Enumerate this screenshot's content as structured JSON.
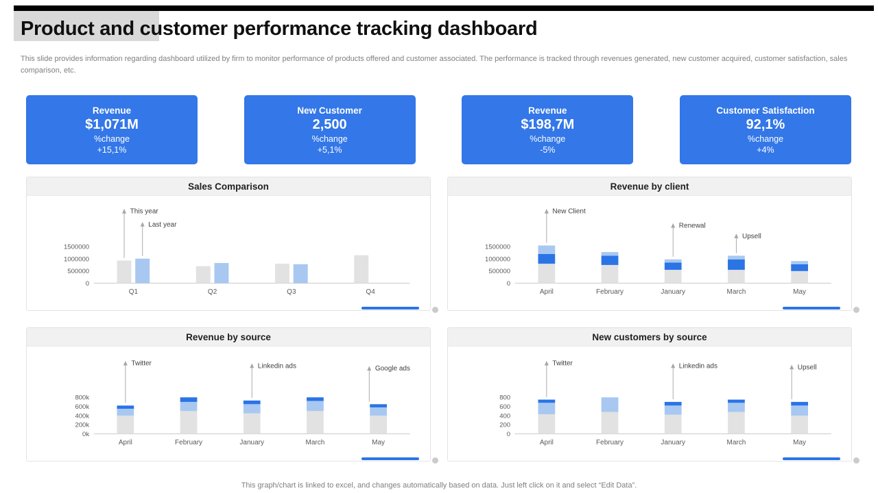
{
  "palette": {
    "accent_black": "#000000",
    "accent_gray": "#d9d9d9",
    "card_blue": "#3377e8",
    "bar_gray": "#e2e2e2",
    "bar_blue": "#2b74e6",
    "bar_light_blue": "#a8c8f1",
    "axis_gray": "#c8c8c8",
    "text_gray": "#595959"
  },
  "header": {
    "title": "Product and customer performance tracking dashboard",
    "subtitle": "This slide provides information regarding dashboard utilized by firm to monitor performance of products offered and customer associated. The performance is tracked through revenues generated, new customer acquired, customer satisfaction, sales comparison, etc."
  },
  "kpi_cards": [
    {
      "label": "Revenue",
      "value": "$1,071M",
      "change_label": "%change",
      "change_value": "+15,1%"
    },
    {
      "label": "New Customer",
      "value": "2,500",
      "change_label": "%change",
      "change_value": "+5,1%"
    },
    {
      "label": "Revenue",
      "value": "$198,7M",
      "change_label": "%change",
      "change_value": "-5%"
    },
    {
      "label": "Customer Satisfaction",
      "value": "92,1%",
      "change_label": "%change",
      "change_value": "+4%"
    }
  ],
  "footer": {
    "note": "This graph/chart is linked to excel,  and changes automatically based on data. Just left click on it and select “Edit Data”."
  },
  "chart_data": [
    {
      "type": "bar",
      "title": "Sales Comparison",
      "stacked": false,
      "categories": [
        "Q1",
        "Q2",
        "Q3",
        "Q4"
      ],
      "ymax": 1500000,
      "yticks": [
        {
          "label": "1500000",
          "value": 1500000
        },
        {
          "label": "1000000",
          "value": 1000000
        },
        {
          "label": "500000",
          "value": 500000
        },
        {
          "label": "0",
          "value": 0
        }
      ],
      "series": [
        {
          "name": "This year",
          "color": "bar_gray",
          "values": [
            930000,
            700000,
            800000,
            1150000
          ]
        },
        {
          "name": "Last year",
          "color": "bar_light_blue",
          "values": [
            1010000,
            830000,
            780000,
            0
          ]
        }
      ],
      "annotations": [
        {
          "label": "This year",
          "cat": 0,
          "series": 0,
          "label_y": 18
        },
        {
          "label": "Last year",
          "cat": 0,
          "series": 1,
          "label_y": 38
        }
      ]
    },
    {
      "type": "bar",
      "title": "Revenue by client",
      "stacked": true,
      "categories": [
        "April",
        "February",
        "January",
        "March",
        "May"
      ],
      "ymax": 1500000,
      "yticks": [
        {
          "label": "1500000",
          "value": 1500000
        },
        {
          "label": "1000000",
          "value": 1000000
        },
        {
          "label": "500000",
          "value": 500000
        },
        {
          "label": "0",
          "value": 0
        }
      ],
      "series": [
        {
          "name": "New Client",
          "color": "bar_gray",
          "values": [
            800000,
            750000,
            550000,
            550000,
            500000
          ]
        },
        {
          "name": "Renewal",
          "color": "bar_blue",
          "values": [
            400000,
            380000,
            300000,
            430000,
            280000
          ]
        },
        {
          "name": "Upsell",
          "color": "bar_light_blue",
          "values": [
            350000,
            150000,
            130000,
            150000,
            130000
          ]
        }
      ],
      "annotations": [
        {
          "label": "New Client",
          "cat": 0,
          "label_y": 18
        },
        {
          "label": "Renewal",
          "cat": 2,
          "label_y": 40
        },
        {
          "label": "Upsell",
          "cat": 3,
          "label_y": 56
        }
      ]
    },
    {
      "type": "bar",
      "title": "Revenue by source",
      "stacked": true,
      "categories": [
        "April",
        "February",
        "January",
        "March",
        "May"
      ],
      "ymax": 800000,
      "yticks": [
        {
          "label": "800k",
          "value": 800000
        },
        {
          "label": "600k",
          "value": 600000
        },
        {
          "label": "400k",
          "value": 400000
        },
        {
          "label": "200k",
          "value": 200000
        },
        {
          "label": "0k",
          "value": 0
        }
      ],
      "series": [
        {
          "name": "Twitter",
          "color": "bar_gray",
          "values": [
            400000,
            500000,
            450000,
            500000,
            400000
          ]
        },
        {
          "name": "Linkedin ads",
          "color": "bar_light_blue",
          "values": [
            150000,
            200000,
            200000,
            220000,
            180000
          ]
        },
        {
          "name": "Google ads",
          "color": "bar_blue",
          "values": [
            70000,
            100000,
            80000,
            80000,
            70000
          ]
        }
      ],
      "annotations": [
        {
          "label": "Twitter",
          "cat": 0,
          "label_y": 20
        },
        {
          "label": "Linkedin ads",
          "cat": 2,
          "label_y": 24
        },
        {
          "label": "Google ads",
          "cat": 4,
          "label_y": 28,
          "dx": -14
        }
      ]
    },
    {
      "type": "bar",
      "title": "New customers by source",
      "stacked": true,
      "categories": [
        "April",
        "February",
        "January",
        "March",
        "May"
      ],
      "ymax": 800,
      "yticks": [
        {
          "label": "800",
          "value": 800
        },
        {
          "label": "600",
          "value": 600
        },
        {
          "label": "400",
          "value": 400
        },
        {
          "label": "200",
          "value": 200
        },
        {
          "label": "0",
          "value": 0
        }
      ],
      "series": [
        {
          "name": "Twitter",
          "color": "bar_gray",
          "values": [
            430,
            480,
            420,
            480,
            400
          ]
        },
        {
          "name": "Linkedin ads",
          "color": "bar_light_blue",
          "values": [
            250,
            320,
            200,
            200,
            220
          ]
        },
        {
          "name": "Upsell",
          "color": "bar_blue",
          "values": [
            70,
            0,
            80,
            70,
            80
          ]
        }
      ],
      "annotations": [
        {
          "label": "Twitter",
          "cat": 0,
          "label_y": 20
        },
        {
          "label": "Linkedin ads",
          "cat": 2,
          "label_y": 24
        },
        {
          "label": "Upsell",
          "cat": 4,
          "label_y": 26,
          "dx": -12
        }
      ]
    }
  ]
}
